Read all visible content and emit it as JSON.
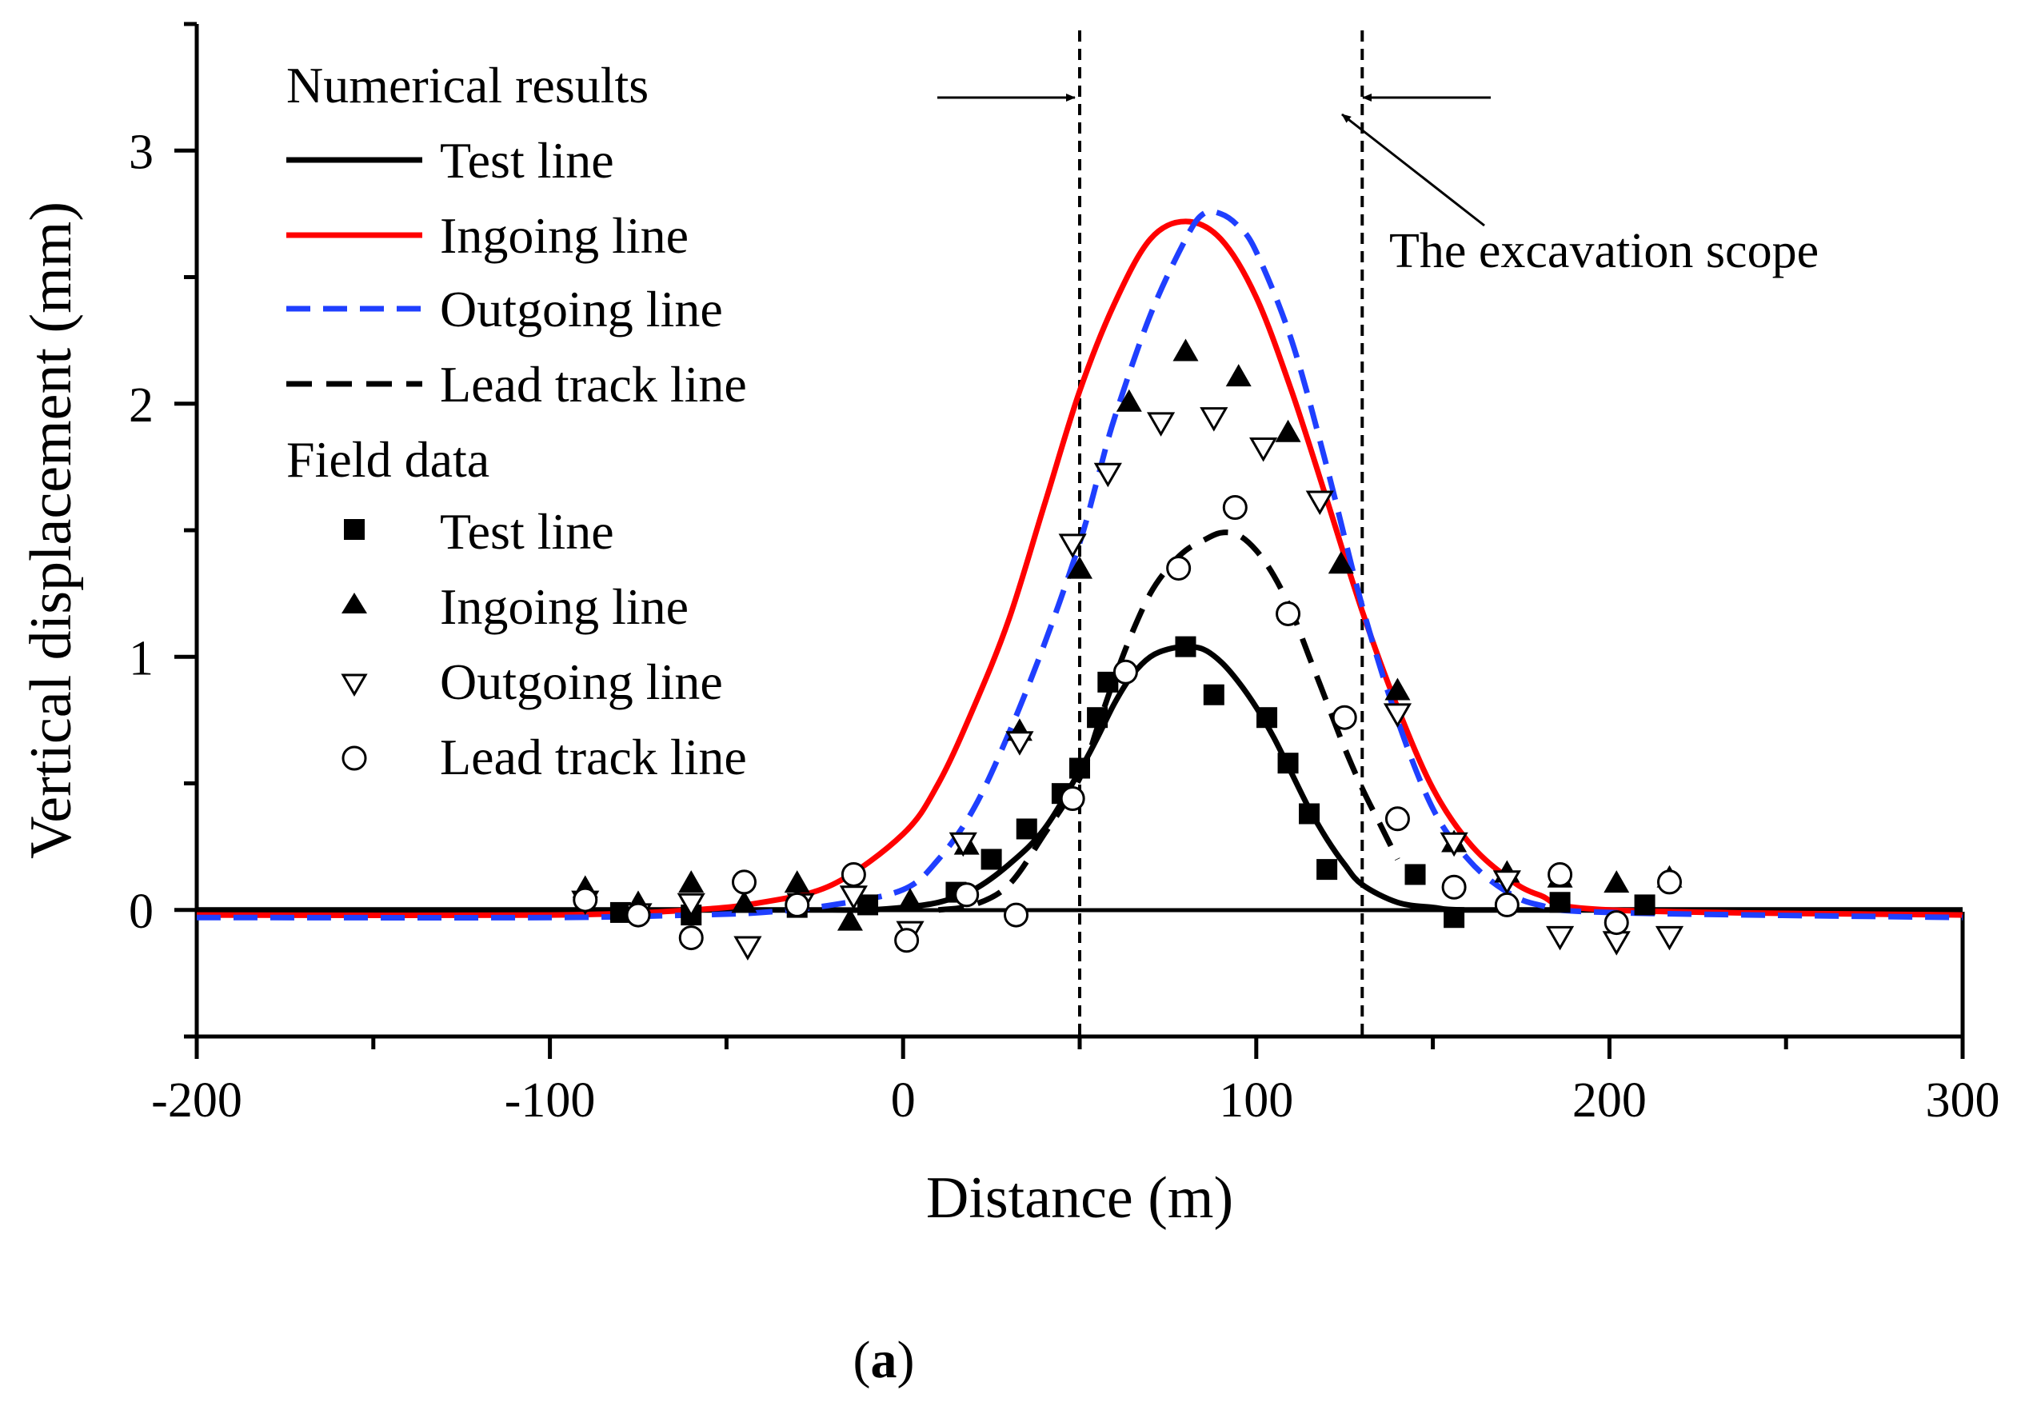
{
  "chart_data": {
    "type": "line",
    "panel_label": "(a)",
    "panel_label_letter": "a",
    "xlabel": "Distance (m)",
    "ylabel": "Vertical displacement (mm)",
    "xlim": [
      -200,
      300
    ],
    "ylim": [
      -0.5,
      3.5
    ],
    "x_major_ticks": [
      -200,
      -100,
      0,
      100,
      200,
      300
    ],
    "x_minor_ticks": [
      -150,
      -50,
      50,
      150,
      250
    ],
    "y_major_ticks": [
      0,
      1,
      2,
      3
    ],
    "y_minor_ticks": [
      -0.5,
      0.5,
      1.5,
      2.5,
      3.5
    ],
    "grid": false,
    "legend_position": "top-left",
    "legend_groups": [
      "Numerical results",
      "Field data"
    ],
    "excavation_scope": {
      "x_start": 50,
      "x_end": 130,
      "label": "The excavation scope"
    },
    "series": [
      {
        "name": "Test line",
        "kind": "numerical",
        "style": "solid",
        "color": "#000000",
        "x": [
          -200,
          -100,
          -60,
          -40,
          -20,
          -10,
          0,
          10,
          20,
          30,
          40,
          50,
          55,
          60,
          65,
          70,
          75,
          80,
          85,
          90,
          95,
          100,
          105,
          110,
          115,
          120,
          125,
          130,
          140,
          150,
          160,
          200,
          300
        ],
        "y": [
          0,
          0,
          0,
          0,
          0,
          0,
          0.01,
          0.03,
          0.08,
          0.18,
          0.32,
          0.55,
          0.68,
          0.82,
          0.93,
          1.0,
          1.03,
          1.04,
          1.03,
          0.98,
          0.9,
          0.8,
          0.68,
          0.54,
          0.4,
          0.28,
          0.18,
          0.1,
          0.03,
          0.01,
          0,
          0,
          0
        ]
      },
      {
        "name": "Ingoing line",
        "kind": "numerical",
        "style": "solid",
        "color": "#ff0000",
        "x": [
          -200,
          -100,
          -60,
          -40,
          -20,
          0,
          10,
          20,
          30,
          40,
          50,
          60,
          70,
          80,
          90,
          100,
          110,
          120,
          130,
          140,
          150,
          160,
          170,
          180,
          200,
          300
        ],
        "y": [
          -0.02,
          -0.02,
          0,
          0.03,
          0.1,
          0.3,
          0.5,
          0.8,
          1.15,
          1.6,
          2.05,
          2.4,
          2.65,
          2.72,
          2.65,
          2.42,
          2.05,
          1.62,
          1.18,
          0.8,
          0.48,
          0.27,
          0.14,
          0.06,
          0,
          -0.02
        ]
      },
      {
        "name": "Outgoing line",
        "kind": "numerical",
        "style": "dashed",
        "color": "#1f3fff",
        "x": [
          -200,
          -100,
          -60,
          -40,
          -20,
          0,
          10,
          20,
          30,
          40,
          50,
          55,
          60,
          70,
          80,
          85,
          90,
          95,
          100,
          110,
          120,
          130,
          140,
          150,
          160,
          170,
          180,
          200,
          300
        ],
        "y": [
          -0.03,
          -0.03,
          -0.02,
          -0.01,
          0.02,
          0.08,
          0.2,
          0.4,
          0.7,
          1.05,
          1.45,
          1.7,
          1.95,
          2.35,
          2.65,
          2.75,
          2.75,
          2.7,
          2.6,
          2.25,
          1.75,
          1.2,
          0.75,
          0.4,
          0.2,
          0.08,
          0.02,
          -0.01,
          -0.03
        ]
      },
      {
        "name": "Lead track line",
        "kind": "numerical",
        "style": "dashed",
        "color": "#000000",
        "x": [
          10,
          20,
          30,
          40,
          50,
          55,
          60,
          65,
          70,
          75,
          80,
          85,
          90,
          95,
          100,
          105,
          110,
          115,
          120,
          125,
          130,
          135,
          140
        ],
        "y": [
          0,
          0.02,
          0.1,
          0.3,
          0.52,
          0.72,
          0.92,
          1.1,
          1.25,
          1.35,
          1.42,
          1.46,
          1.49,
          1.48,
          1.42,
          1.32,
          1.18,
          1.0,
          0.82,
          0.64,
          0.48,
          0.34,
          0.2
        ]
      },
      {
        "name": "Test line",
        "kind": "field",
        "marker": "filled-square",
        "x": [
          -80,
          -60,
          -30,
          -10,
          15,
          25,
          35,
          45,
          50,
          55,
          58,
          80,
          88,
          103,
          109,
          115,
          120,
          145,
          156,
          186,
          210
        ],
        "y": [
          -0.01,
          -0.02,
          0.01,
          0.02,
          0.07,
          0.2,
          0.32,
          0.46,
          0.56,
          0.76,
          0.9,
          1.04,
          0.85,
          0.76,
          0.58,
          0.38,
          0.16,
          0.14,
          -0.03,
          0.03,
          0.02
        ]
      },
      {
        "name": "Ingoing line",
        "kind": "field",
        "marker": "filled-triangle-up",
        "x": [
          -90,
          -75,
          -60,
          -45,
          -30,
          -15,
          2,
          18,
          33,
          50,
          64,
          80,
          95,
          109,
          124,
          140,
          156,
          171,
          186,
          202,
          217
        ],
        "y": [
          0.08,
          0.02,
          0.1,
          0.02,
          0.1,
          -0.05,
          0.03,
          0.25,
          0.7,
          1.34,
          2.0,
          2.2,
          2.1,
          1.88,
          1.36,
          0.86,
          0.26,
          0.14,
          0.12,
          0.1,
          0.12
        ]
      },
      {
        "name": "Outgoing line",
        "kind": "field",
        "marker": "open-triangle-down",
        "x": [
          -90,
          -75,
          -60,
          -44,
          -29,
          -14,
          2,
          17,
          33,
          48,
          58,
          73,
          88,
          102,
          118,
          140,
          156,
          171,
          186,
          202,
          217
        ],
        "y": [
          0.04,
          -0.01,
          0.03,
          -0.14,
          0.03,
          0.06,
          -0.08,
          0.27,
          0.67,
          1.45,
          1.73,
          1.93,
          1.95,
          1.83,
          1.62,
          0.78,
          0.27,
          0.12,
          -0.1,
          -0.12,
          -0.1
        ]
      },
      {
        "name": "Lead track line",
        "kind": "field",
        "marker": "open-circle",
        "x": [
          -90,
          -75,
          -60,
          -45,
          -30,
          -14,
          1,
          18,
          32,
          48,
          63,
          78,
          94,
          109,
          125,
          140,
          156,
          171,
          186,
          202,
          217
        ],
        "y": [
          0.04,
          -0.02,
          -0.11,
          0.11,
          0.02,
          0.14,
          -0.12,
          0.06,
          -0.02,
          0.44,
          0.94,
          1.35,
          1.59,
          1.17,
          0.76,
          0.36,
          0.09,
          0.02,
          0.14,
          -0.05,
          0.11
        ]
      }
    ]
  }
}
